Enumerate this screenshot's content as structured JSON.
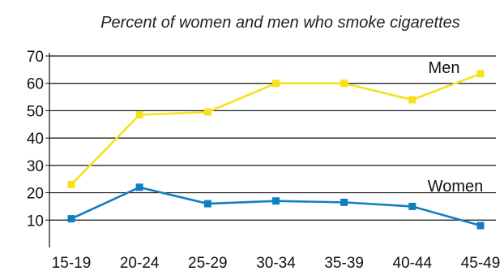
{
  "chart_data": {
    "type": "line",
    "title": "Percent of women and men who smoke cigarettes",
    "xlabel": "",
    "ylabel": "",
    "categories": [
      "15-19",
      "20-24",
      "25-29",
      "30-34",
      "35-39",
      "40-44",
      "45-49"
    ],
    "y_ticks": [
      10,
      20,
      30,
      40,
      50,
      60,
      70
    ],
    "ylim": [
      0,
      70
    ],
    "grid": true,
    "series": [
      {
        "name": "Men",
        "color": "#f5e21c",
        "values": [
          23,
          48.5,
          49.5,
          60,
          60,
          54,
          63.5
        ]
      },
      {
        "name": "Women",
        "color": "#0f7fc2",
        "values": [
          10.5,
          22,
          16,
          17,
          16.5,
          15,
          8
        ]
      }
    ]
  }
}
